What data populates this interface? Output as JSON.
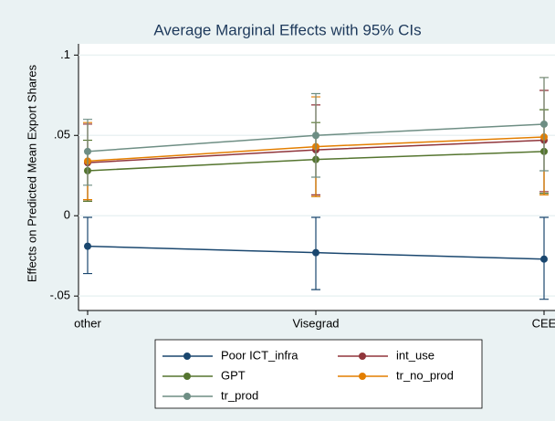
{
  "chart_data": {
    "type": "line",
    "title": "Average Marginal Effects with 95% CIs",
    "ylabel": "Effects on Predicted Mean Export Shares",
    "categories": [
      "other",
      "Visegrad",
      "CEE"
    ],
    "ylim": [
      -0.059,
      0.107
    ],
    "yticks": [
      {
        "value": 0.1,
        "label": ".1"
      },
      {
        "value": 0.05,
        "label": ".05"
      },
      0,
      {
        "value": -0.05,
        "label": "-.05"
      }
    ],
    "grid": true,
    "series": [
      {
        "name": "Poor ICT_infra",
        "color": "#1a476f",
        "values": [
          -0.019,
          -0.023,
          -0.027
        ],
        "lower": [
          -0.036,
          -0.046,
          -0.052
        ],
        "upper": [
          -0.001,
          -0.001,
          -0.001
        ]
      },
      {
        "name": "int_use",
        "color": "#90353b",
        "values": [
          0.033,
          0.041,
          0.047
        ],
        "lower": [
          0.01,
          0.013,
          0.015
        ],
        "upper": [
          0.057,
          0.069,
          0.078
        ]
      },
      {
        "name": "GPT",
        "color": "#55752f",
        "values": [
          0.028,
          0.035,
          0.04
        ],
        "lower": [
          0.009,
          0.012,
          0.014
        ],
        "upper": [
          0.047,
          0.058,
          0.066
        ]
      },
      {
        "name": "tr_no_prod",
        "color": "#e37e00",
        "values": [
          0.034,
          0.043,
          0.049
        ],
        "lower": [
          0.01,
          0.012,
          0.013
        ],
        "upper": [
          0.058,
          0.074,
          0.086
        ]
      },
      {
        "name": "tr_prod",
        "color": "#6e8e84",
        "values": [
          0.04,
          0.05,
          0.057
        ],
        "lower": [
          0.019,
          0.024,
          0.028
        ],
        "upper": [
          0.06,
          0.076,
          0.086
        ]
      }
    ]
  }
}
